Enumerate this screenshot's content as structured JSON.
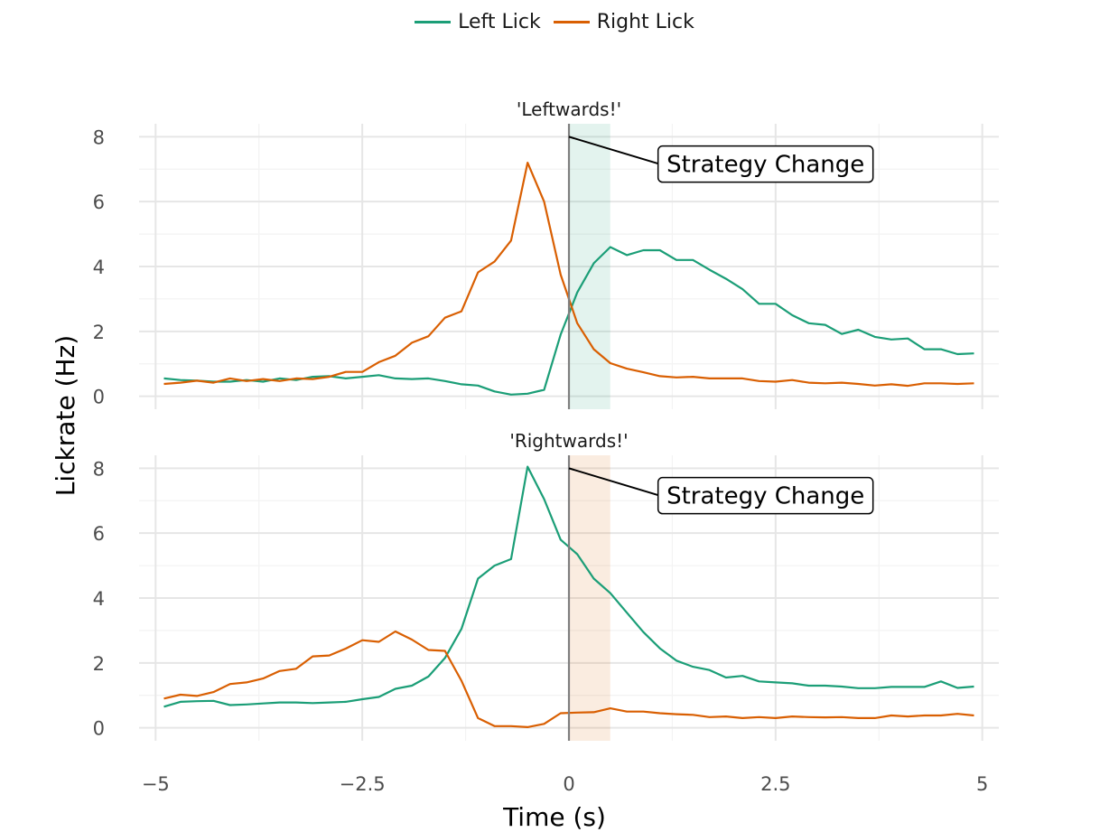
{
  "chart_data": {
    "type": "line",
    "xlabel": "Time (s)",
    "ylabel": "Lickrate (Hz)",
    "xlim": [
      -5.2,
      5.2
    ],
    "ylim": [
      -0.4,
      8.4
    ],
    "x_ticks": [
      -5,
      -2.5,
      0,
      2.5,
      5
    ],
    "x_tick_labels": [
      "−5",
      "−2.5",
      "0",
      "2.5",
      "5"
    ],
    "y_ticks": [
      0,
      2,
      4,
      6,
      8
    ],
    "y_tick_labels": [
      "0",
      "2",
      "4",
      "6",
      "8"
    ],
    "grid": true,
    "legend": "top",
    "legend_entries": [
      "Left Lick",
      "Right Lick"
    ],
    "colors": {
      "left": "#1b9e77",
      "right": "#d95f02"
    },
    "x": [
      -4.9,
      -4.7,
      -4.5,
      -4.3,
      -4.1,
      -3.9,
      -3.7,
      -3.5,
      -3.3,
      -3.1,
      -2.9,
      -2.7,
      -2.5,
      -2.3,
      -2.1,
      -1.9,
      -1.7,
      -1.5,
      -1.3,
      -1.1,
      -0.9,
      -0.7,
      -0.5,
      -0.3,
      -0.1,
      0.1,
      0.3,
      0.5,
      0.7,
      0.9,
      1.1,
      1.3,
      1.5,
      1.7,
      1.9,
      2.1,
      2.3,
      2.5,
      2.7,
      2.9,
      3.1,
      3.3,
      3.5,
      3.7,
      3.9,
      4.1,
      4.3,
      4.5,
      4.7,
      4.9
    ],
    "panels": [
      {
        "title": "'Leftwards!'",
        "shade_color": "#1b9e77",
        "shade_range": [
          0,
          0.5
        ],
        "annotation": {
          "text": "Strategy Change",
          "x": 1.1,
          "y": 7.1,
          "point": [
            0,
            8
          ]
        },
        "series": [
          {
            "name": "Left Lick",
            "values": [
              0.55,
              0.5,
              0.48,
              0.45,
              0.45,
              0.5,
              0.45,
              0.55,
              0.5,
              0.6,
              0.62,
              0.55,
              0.6,
              0.65,
              0.55,
              0.53,
              0.55,
              0.47,
              0.37,
              0.33,
              0.15,
              0.05,
              0.08,
              0.2,
              1.9,
              3.2,
              4.1,
              4.6,
              4.35,
              4.5,
              4.5,
              4.2,
              4.2,
              3.9,
              3.62,
              3.3,
              2.85,
              2.85,
              2.5,
              2.25,
              2.2,
              1.92,
              2.05,
              1.83,
              1.75,
              1.78,
              1.45,
              1.45,
              1.3,
              1.32
            ]
          },
          {
            "name": "Right Lick",
            "values": [
              0.38,
              0.42,
              0.48,
              0.42,
              0.55,
              0.47,
              0.53,
              0.47,
              0.55,
              0.53,
              0.6,
              0.75,
              0.75,
              1.05,
              1.25,
              1.65,
              1.85,
              2.42,
              2.62,
              3.82,
              4.15,
              4.8,
              7.2,
              6.0,
              3.75,
              2.25,
              1.45,
              1.02,
              0.85,
              0.74,
              0.62,
              0.58,
              0.6,
              0.55,
              0.55,
              0.55,
              0.47,
              0.45,
              0.5,
              0.42,
              0.4,
              0.42,
              0.38,
              0.33,
              0.37,
              0.32,
              0.4,
              0.4,
              0.38,
              0.4
            ]
          }
        ]
      },
      {
        "title": "'Rightwards!'",
        "shade_color": "#d95f02",
        "shade_range": [
          0,
          0.5
        ],
        "annotation": {
          "text": "Strategy Change",
          "x": 1.1,
          "y": 7.1,
          "point": [
            0,
            8
          ]
        },
        "series": [
          {
            "name": "Left Lick",
            "values": [
              0.65,
              0.8,
              0.82,
              0.83,
              0.7,
              0.72,
              0.75,
              0.78,
              0.78,
              0.76,
              0.78,
              0.8,
              0.88,
              0.95,
              1.2,
              1.3,
              1.58,
              2.15,
              3.05,
              4.6,
              5.0,
              5.2,
              8.05,
              7.05,
              5.8,
              5.35,
              4.6,
              4.15,
              3.55,
              2.95,
              2.45,
              2.07,
              1.88,
              1.78,
              1.55,
              1.6,
              1.43,
              1.4,
              1.37,
              1.3,
              1.3,
              1.27,
              1.22,
              1.22,
              1.26,
              1.26,
              1.26,
              1.43,
              1.23,
              1.27
            ]
          },
          {
            "name": "Right Lick",
            "values": [
              0.9,
              1.02,
              0.98,
              1.1,
              1.35,
              1.4,
              1.52,
              1.75,
              1.82,
              2.2,
              2.23,
              2.44,
              2.7,
              2.65,
              2.97,
              2.72,
              2.4,
              2.37,
              1.45,
              0.3,
              0.05,
              0.05,
              0.02,
              0.12,
              0.45,
              0.47,
              0.48,
              0.6,
              0.5,
              0.5,
              0.45,
              0.42,
              0.4,
              0.33,
              0.35,
              0.3,
              0.33,
              0.3,
              0.35,
              0.33,
              0.32,
              0.33,
              0.3,
              0.3,
              0.38,
              0.35,
              0.38,
              0.38,
              0.43,
              0.38
            ]
          }
        ]
      }
    ]
  }
}
